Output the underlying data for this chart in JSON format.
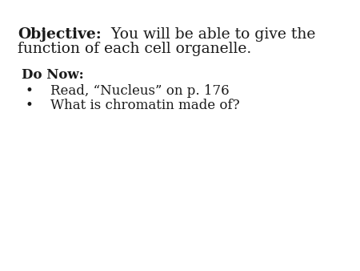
{
  "background_color": "#ffffff",
  "objective_bold": "Objective:",
  "objective_rest_line1": "  You will be able to give the",
  "objective_line2": "function of each cell organelle.",
  "do_now_label": "Do Now:",
  "bullet_items": [
    "Read, “Nucleus” on p. 176",
    "What is chromatin made of?"
  ],
  "text_color": "#1a1a1a",
  "objective_fontsize": 13.5,
  "do_now_fontsize": 12,
  "bullet_fontsize": 12,
  "fig_width": 4.5,
  "fig_height": 3.38,
  "dpi": 100
}
